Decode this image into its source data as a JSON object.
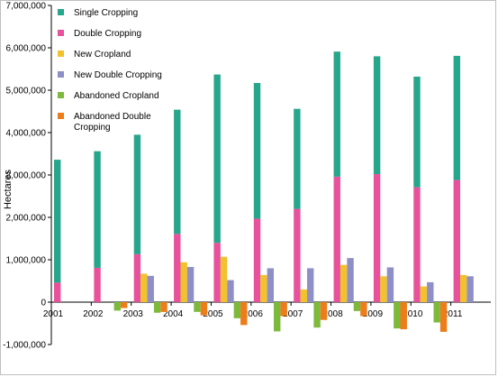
{
  "chart_data": {
    "type": "bar",
    "title": "",
    "xlabel": "",
    "ylabel": "Hectares",
    "ylim": [
      -1000000,
      7000000
    ],
    "yticks": [
      7000000,
      6000000,
      5000000,
      4000000,
      3000000,
      2000000,
      1000000,
      0,
      -1000000
    ],
    "ytick_labels": [
      "7,000,000",
      "6,000,000",
      "5,000,000",
      "4,000,000",
      "3,000,000",
      "2,000,000",
      "1,000,000",
      "0",
      "-1,000,000"
    ],
    "grid": false,
    "legend_position": "top-left",
    "categories": [
      "2001",
      "2002",
      "2003",
      "2004",
      "2005",
      "2006",
      "2007",
      "2008",
      "2009",
      "2010",
      "2011"
    ],
    "series": [
      {
        "name": "Single Cropping",
        "color": "#26a68a",
        "stacked_on": "Double Cropping",
        "values": [
          2900000,
          2750000,
          2820000,
          2930000,
          3970000,
          3200000,
          2360000,
          2950000,
          2780000,
          2610000,
          2930000
        ]
      },
      {
        "name": "Double Cropping",
        "color": "#e8519b",
        "values": [
          460000,
          810000,
          1130000,
          1610000,
          1400000,
          1970000,
          2200000,
          2960000,
          3020000,
          2710000,
          2880000
        ]
      },
      {
        "name": "New Cropland",
        "color": "#f2c12e",
        "values": [
          0,
          0,
          670000,
          940000,
          1070000,
          640000,
          300000,
          880000,
          610000,
          370000,
          640000
        ]
      },
      {
        "name": "New Double Cropping",
        "color": "#8f8fc7",
        "values": [
          0,
          0,
          620000,
          830000,
          520000,
          800000,
          800000,
          1040000,
          820000,
          470000,
          610000
        ]
      },
      {
        "name": "Abandoned Cropland",
        "color": "#7dba3c",
        "values": [
          0,
          -200000,
          -250000,
          -230000,
          -380000,
          -690000,
          -600000,
          -210000,
          -620000,
          -480000,
          0
        ]
      },
      {
        "name": "Abandoned Double Cropping",
        "color": "#ec7d1a",
        "values": [
          0,
          -140000,
          -230000,
          -310000,
          -540000,
          -330000,
          -420000,
          -330000,
          -640000,
          -700000,
          0
        ]
      }
    ]
  }
}
